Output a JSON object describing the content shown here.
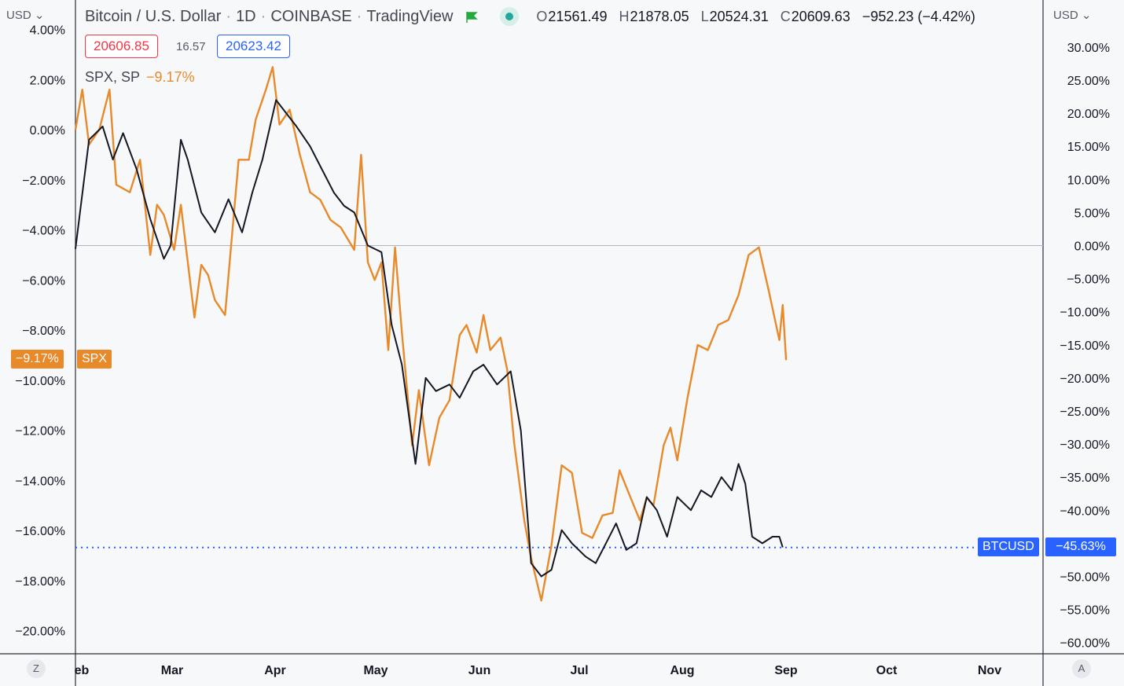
{
  "header": {
    "symbol": "Bitcoin / U.S. Dollar",
    "interval": "1D",
    "exchange": "COINBASE",
    "source": "TradingView",
    "ohlc": {
      "o_label": "O",
      "o": "21561.49",
      "h_label": "H",
      "h": "21878.05",
      "l_label": "L",
      "l": "20524.31",
      "c_label": "C",
      "c": "20609.63"
    },
    "change": "−952.23 (−4.42%)"
  },
  "sell_price": "20606.85",
  "spread": "16.57",
  "buy_price": "20623.42",
  "compare": {
    "label": "SPX, SP",
    "change": "−9.17%"
  },
  "currency_left": "USD",
  "currency_right": "USD",
  "left_tag": {
    "value": "−9.17%",
    "name": "SPX"
  },
  "right_tag": {
    "name": "BTCUSD",
    "value": "−45.63%"
  },
  "buttons": {
    "z": "Z",
    "a": "A"
  },
  "colors": {
    "spx": "#e8892a",
    "btc": "#131722",
    "tag_blue": "#2962ff",
    "sell_red": "#f23645"
  },
  "chart_data": {
    "type": "line",
    "x_axis": {
      "ticks": [
        "eb",
        "Mar",
        "Apr",
        "May",
        "Jun",
        "Jul",
        "Aug",
        "Sep",
        "Oct",
        "Nov"
      ]
    },
    "left_axis": {
      "ticks": [
        "4.00%",
        "2.00%",
        "0.00%",
        "−2.00%",
        "−4.00%",
        "−6.00%",
        "−8.00%",
        "−10.00%",
        "−12.00%",
        "−14.00%",
        "−16.00%",
        "−18.00%",
        "−20.00%"
      ],
      "range": [
        -20,
        4
      ]
    },
    "right_axis": {
      "ticks": [
        "30.00%",
        "25.00%",
        "20.00%",
        "15.00%",
        "10.00%",
        "5.00%",
        "0.00%",
        "−5.00%",
        "−10.00%",
        "−15.00%",
        "−20.00%",
        "−25.00%",
        "−30.00%",
        "−35.00%",
        "−40.00%",
        "−45.00%",
        "−50.00%",
        "−55.00%",
        "−60.00%"
      ],
      "range": [
        -60,
        30
      ]
    },
    "series": [
      {
        "name": "SPX",
        "axis": "left",
        "points": [
          [
            "2022-02-01",
            0.0
          ],
          [
            "2022-02-03",
            1.6
          ],
          [
            "2022-02-05",
            -0.6
          ],
          [
            "2022-02-08",
            0.0
          ],
          [
            "2022-02-11",
            1.6
          ],
          [
            "2022-02-13",
            -2.2
          ],
          [
            "2022-02-17",
            -2.5
          ],
          [
            "2022-02-20",
            -1.2
          ],
          [
            "2022-02-23",
            -5.0
          ],
          [
            "2022-02-25",
            -3.0
          ],
          [
            "2022-02-27",
            -3.4
          ],
          [
            "2022-03-02",
            -4.8
          ],
          [
            "2022-03-04",
            -3.0
          ],
          [
            "2022-03-08",
            -7.5
          ],
          [
            "2022-03-10",
            -5.4
          ],
          [
            "2022-03-12",
            -5.8
          ],
          [
            "2022-03-14",
            -6.8
          ],
          [
            "2022-03-17",
            -7.4
          ],
          [
            "2022-03-21",
            -1.2
          ],
          [
            "2022-03-24",
            -1.2
          ],
          [
            "2022-03-26",
            0.4
          ],
          [
            "2022-03-29",
            1.6
          ],
          [
            "2022-03-31",
            2.5
          ],
          [
            "2022-04-02",
            0.2
          ],
          [
            "2022-04-05",
            0.8
          ],
          [
            "2022-04-08",
            -1.0
          ],
          [
            "2022-04-11",
            -2.5
          ],
          [
            "2022-04-14",
            -2.8
          ],
          [
            "2022-04-17",
            -3.6
          ],
          [
            "2022-04-20",
            -3.9
          ],
          [
            "2022-04-24",
            -4.8
          ],
          [
            "2022-04-26",
            -1.0
          ],
          [
            "2022-04-28",
            -5.3
          ],
          [
            "2022-04-30",
            -6.0
          ],
          [
            "2022-05-02",
            -5.3
          ],
          [
            "2022-05-04",
            -8.8
          ],
          [
            "2022-05-06",
            -4.7
          ],
          [
            "2022-05-08",
            -8.1
          ],
          [
            "2022-05-11",
            -12.6
          ],
          [
            "2022-05-13",
            -10.4
          ],
          [
            "2022-05-16",
            -13.4
          ],
          [
            "2022-05-19",
            -11.5
          ],
          [
            "2022-05-22",
            -10.8
          ],
          [
            "2022-05-25",
            -8.2
          ],
          [
            "2022-05-27",
            -7.8
          ],
          [
            "2022-05-30",
            -8.9
          ],
          [
            "2022-06-01",
            -7.4
          ],
          [
            "2022-06-03",
            -8.8
          ],
          [
            "2022-06-06",
            -8.3
          ],
          [
            "2022-06-08",
            -9.6
          ],
          [
            "2022-06-10",
            -12.5
          ],
          [
            "2022-06-13",
            -15.6
          ],
          [
            "2022-06-15",
            -17.1
          ],
          [
            "2022-06-18",
            -18.8
          ],
          [
            "2022-06-21",
            -16.6
          ],
          [
            "2022-06-24",
            -13.4
          ],
          [
            "2022-06-27",
            -13.7
          ],
          [
            "2022-06-30",
            -16.1
          ],
          [
            "2022-07-03",
            -16.3
          ],
          [
            "2022-07-06",
            -15.4
          ],
          [
            "2022-07-09",
            -15.3
          ],
          [
            "2022-07-11",
            -13.6
          ],
          [
            "2022-07-14",
            -14.6
          ],
          [
            "2022-07-17",
            -15.6
          ],
          [
            "2022-07-19",
            -14.7
          ],
          [
            "2022-07-21",
            -15.0
          ],
          [
            "2022-07-24",
            -12.6
          ],
          [
            "2022-07-26",
            -11.9
          ],
          [
            "2022-07-28",
            -13.2
          ],
          [
            "2022-07-31",
            -10.7
          ],
          [
            "2022-08-03",
            -8.6
          ],
          [
            "2022-08-06",
            -8.8
          ],
          [
            "2022-08-09",
            -7.8
          ],
          [
            "2022-08-12",
            -7.6
          ],
          [
            "2022-08-15",
            -6.6
          ],
          [
            "2022-08-18",
            -5.0
          ],
          [
            "2022-08-21",
            -4.7
          ],
          [
            "2022-08-24",
            -6.5
          ],
          [
            "2022-08-27",
            -8.4
          ],
          [
            "2022-08-28",
            -7.0
          ],
          [
            "2022-08-29",
            -9.2
          ]
        ]
      },
      {
        "name": "BTCUSD",
        "axis": "right",
        "points": [
          [
            "2022-02-01",
            -0.5
          ],
          [
            "2022-02-05",
            16.0
          ],
          [
            "2022-02-09",
            18.0
          ],
          [
            "2022-02-12",
            13.0
          ],
          [
            "2022-02-15",
            17.0
          ],
          [
            "2022-02-19",
            11.5
          ],
          [
            "2022-02-23",
            4.0
          ],
          [
            "2022-02-27",
            -2.0
          ],
          [
            "2022-03-01",
            0.0
          ],
          [
            "2022-03-04",
            16.0
          ],
          [
            "2022-03-06",
            13.0
          ],
          [
            "2022-03-10",
            5.0
          ],
          [
            "2022-03-14",
            2.0
          ],
          [
            "2022-03-18",
            7.0
          ],
          [
            "2022-03-22",
            2.0
          ],
          [
            "2022-03-25",
            8.0
          ],
          [
            "2022-03-28",
            13.0
          ],
          [
            "2022-04-01",
            22.0
          ],
          [
            "2022-04-04",
            20.0
          ],
          [
            "2022-04-07",
            18.0
          ],
          [
            "2022-04-11",
            15.0
          ],
          [
            "2022-04-14",
            12.0
          ],
          [
            "2022-04-18",
            8.0
          ],
          [
            "2022-04-21",
            6.0
          ],
          [
            "2022-04-24",
            5.0
          ],
          [
            "2022-04-28",
            0.0
          ],
          [
            "2022-05-02",
            -1.0
          ],
          [
            "2022-05-05",
            -12.0
          ],
          [
            "2022-05-08",
            -18.0
          ],
          [
            "2022-05-12",
            -33.0
          ],
          [
            "2022-05-15",
            -20.0
          ],
          [
            "2022-05-18",
            -22.0
          ],
          [
            "2022-05-22",
            -21.0
          ],
          [
            "2022-05-25",
            -23.0
          ],
          [
            "2022-05-29",
            -19.0
          ],
          [
            "2022-06-01",
            -18.0
          ],
          [
            "2022-06-05",
            -21.0
          ],
          [
            "2022-06-09",
            -19.0
          ],
          [
            "2022-06-12",
            -28.0
          ],
          [
            "2022-06-15",
            -48.0
          ],
          [
            "2022-06-18",
            -50.0
          ],
          [
            "2022-06-21",
            -49.0
          ],
          [
            "2022-06-24",
            -43.0
          ],
          [
            "2022-06-27",
            -45.0
          ],
          [
            "2022-07-01",
            -47.0
          ],
          [
            "2022-07-04",
            -48.0
          ],
          [
            "2022-07-07",
            -45.0
          ],
          [
            "2022-07-10",
            -42.0
          ],
          [
            "2022-07-13",
            -46.0
          ],
          [
            "2022-07-16",
            -45.0
          ],
          [
            "2022-07-19",
            -38.0
          ],
          [
            "2022-07-22",
            -40.0
          ],
          [
            "2022-07-25",
            -44.0
          ],
          [
            "2022-07-28",
            -38.0
          ],
          [
            "2022-08-01",
            -40.0
          ],
          [
            "2022-08-04",
            -37.0
          ],
          [
            "2022-08-07",
            -38.0
          ],
          [
            "2022-08-10",
            -35.0
          ],
          [
            "2022-08-13",
            -37.0
          ],
          [
            "2022-08-15",
            -33.0
          ],
          [
            "2022-08-17",
            -36.0
          ],
          [
            "2022-08-19",
            -44.0
          ],
          [
            "2022-08-22",
            -45.0
          ],
          [
            "2022-08-25",
            -44.0
          ],
          [
            "2022-08-27",
            -44.0
          ],
          [
            "2022-08-28",
            -45.6
          ]
        ]
      }
    ],
    "reference_lines": [
      {
        "axis": "right",
        "value": 0,
        "style": "solid"
      },
      {
        "axis": "right",
        "value": -45.63,
        "style": "dotted"
      }
    ]
  }
}
